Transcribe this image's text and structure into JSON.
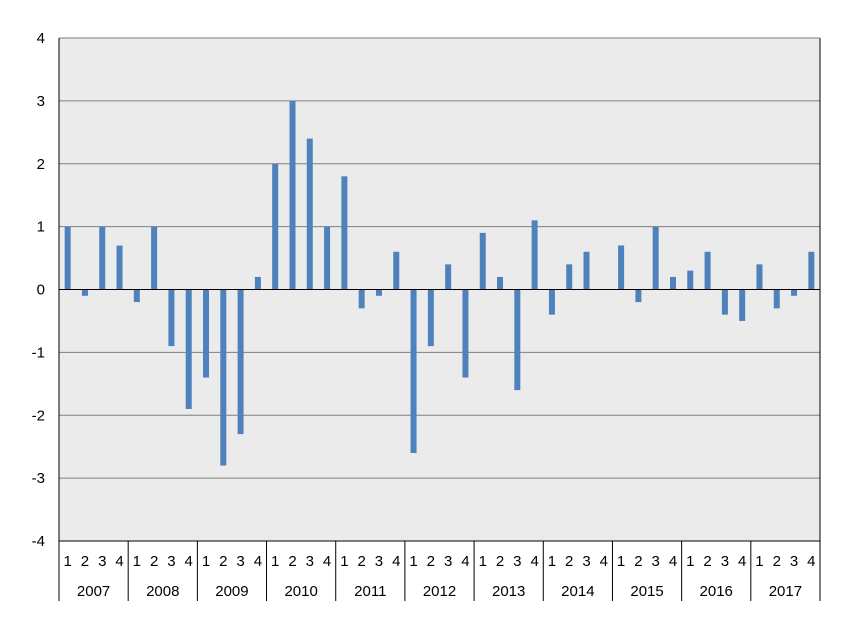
{
  "chart_data": {
    "type": "bar",
    "title": "",
    "xlabel": "",
    "ylabel": "",
    "ylim": [
      -4,
      4
    ],
    "yticks": [
      -4,
      -3,
      -2,
      -1,
      0,
      1,
      2,
      3,
      4
    ],
    "grid": true,
    "legend": "none",
    "colors": {
      "bar": "#4f81bd",
      "plot_background": "#ebebeb",
      "gridline": "#7f7f7f",
      "axis": "#000000"
    },
    "years": [
      "2007",
      "2008",
      "2009",
      "2010",
      "2011",
      "2012",
      "2013",
      "2014",
      "2015",
      "2016",
      "2017"
    ],
    "quarters": [
      "1",
      "2",
      "3",
      "4"
    ],
    "series": [
      {
        "values": [
          1.0,
          -0.1,
          1.0,
          0.7,
          -0.2,
          1.0,
          -0.9,
          -1.9,
          -1.4,
          -2.8,
          -2.3,
          0.2,
          2.0,
          3.0,
          2.4,
          1.0,
          1.8,
          -0.3,
          -0.1,
          0.6,
          -2.6,
          -0.9,
          0.4,
          -1.4,
          0.9,
          0.2,
          -1.6,
          1.1,
          -0.4,
          0.4,
          0.6,
          0.0,
          0.7,
          -0.2,
          1.0,
          0.2,
          0.3,
          0.6,
          -0.4,
          -0.5,
          0.4,
          -0.3,
          -0.1,
          0.6
        ]
      }
    ]
  }
}
